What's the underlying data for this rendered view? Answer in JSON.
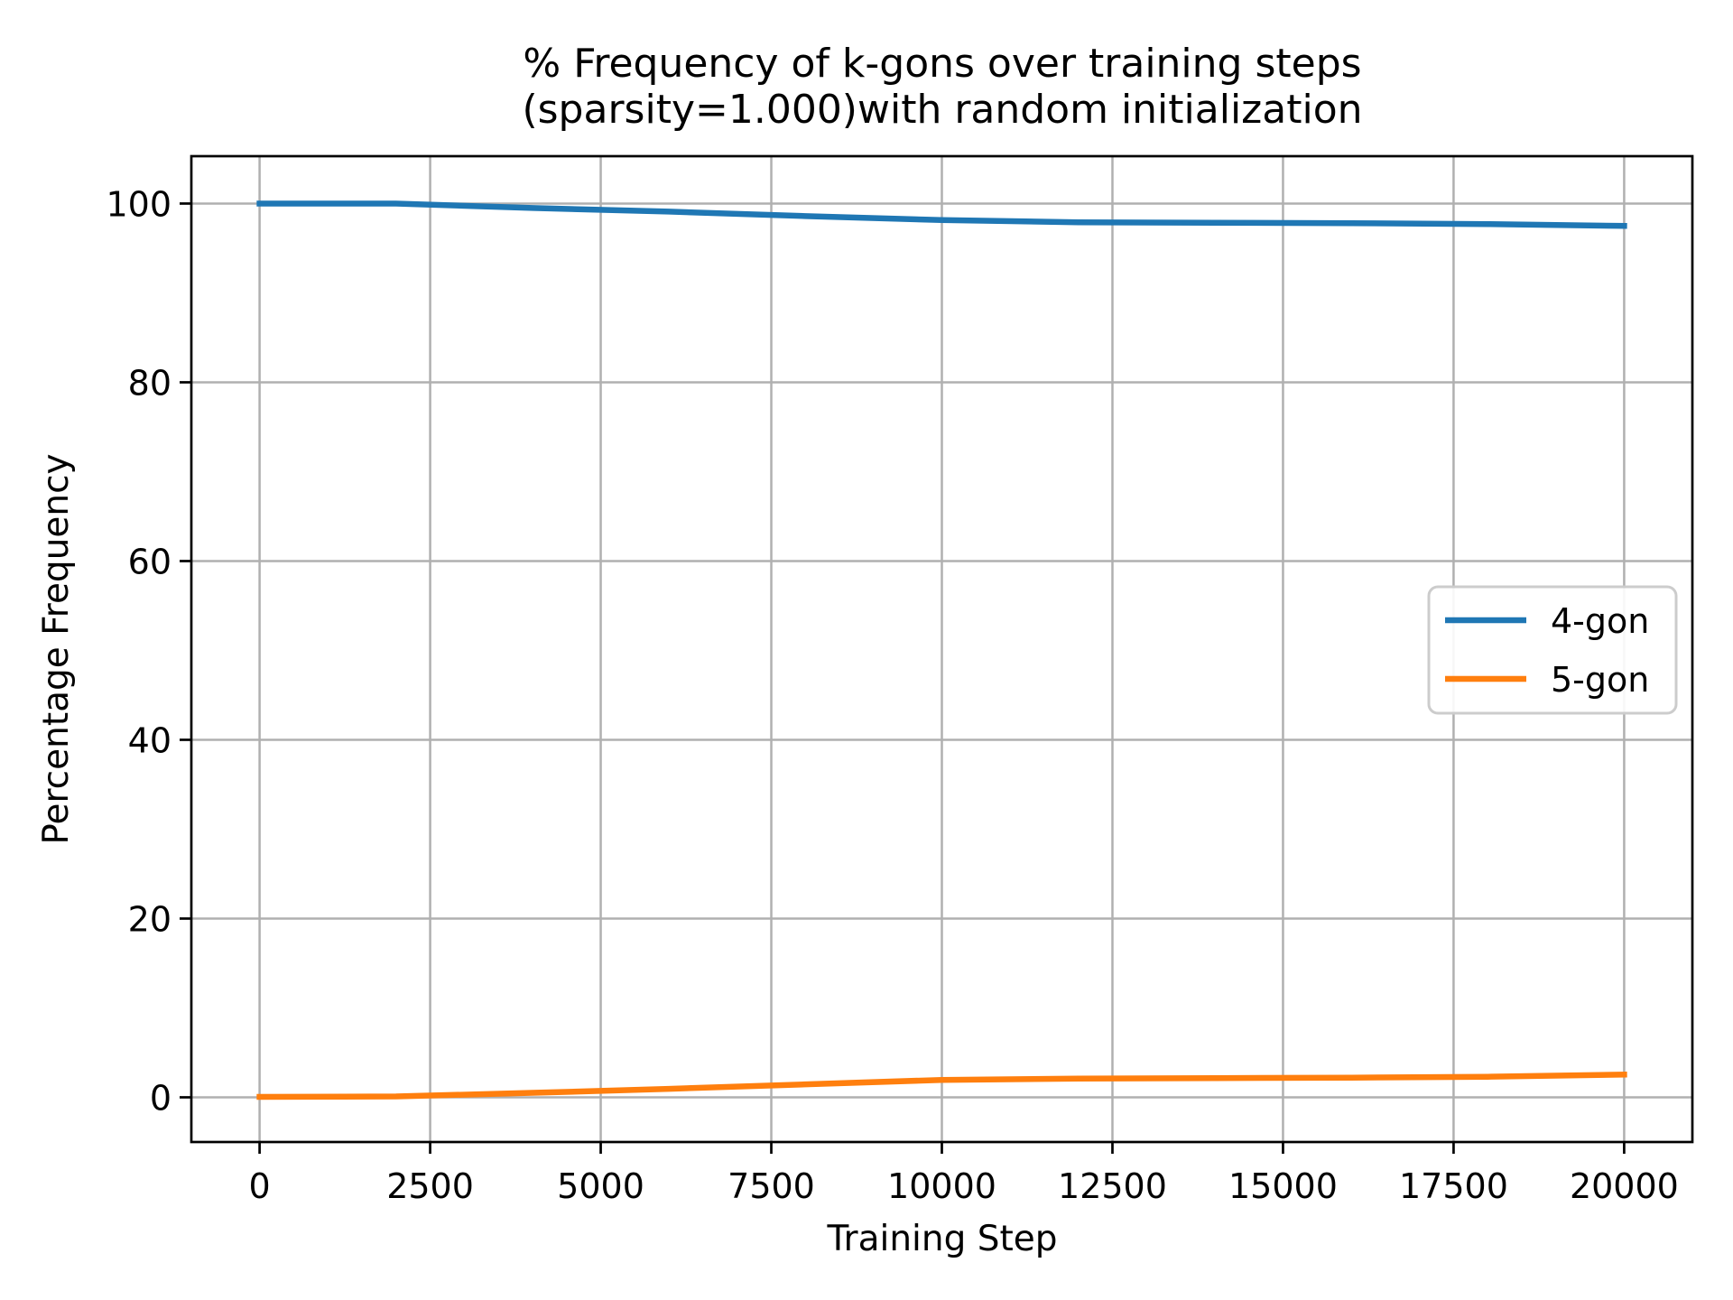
{
  "figure": {
    "background": "#ffffff"
  },
  "chart_data": {
    "type": "line",
    "title": "% Frequency of k-gons over training steps (sparsity=1.000)with random initialization",
    "title_lines": [
      "% Frequency of k-gons over training steps",
      "(sparsity=1.000)with random initialization"
    ],
    "xlabel": "Training Step",
    "ylabel": "Percentage Frequency",
    "xticks": [
      0,
      2500,
      5000,
      7500,
      10000,
      12500,
      15000,
      17500,
      20000
    ],
    "yticks": [
      0,
      20,
      40,
      60,
      80,
      100
    ],
    "xlim": [
      -1000,
      21000
    ],
    "ylim": [
      -5,
      105.3
    ],
    "grid": true,
    "legend": {
      "position": "center right",
      "entries": [
        "4-gon",
        "5-gon"
      ]
    },
    "x": [
      0,
      2000,
      4000,
      6000,
      8000,
      10000,
      12000,
      14000,
      16000,
      18000,
      20000
    ],
    "series": [
      {
        "name": "4-gon",
        "color": "#1f77b4",
        "values": [
          100,
          100,
          99.5,
          99.1,
          98.6,
          98.15,
          97.9,
          97.85,
          97.8,
          97.7,
          97.5
        ]
      },
      {
        "name": "5-gon",
        "color": "#ff7f0e",
        "values": [
          0.05,
          0.1,
          0.5,
          0.95,
          1.45,
          1.95,
          2.1,
          2.15,
          2.2,
          2.3,
          2.55
        ]
      }
    ],
    "colors": {
      "grid": "#b0b0b0",
      "spine": "#000000",
      "text": "#000000",
      "legend_border": "#cccccc",
      "background": "#ffffff"
    }
  }
}
